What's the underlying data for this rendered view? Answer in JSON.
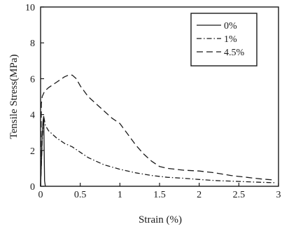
{
  "chart_data": {
    "type": "line",
    "title": "",
    "xlabel": "Strain (%)",
    "ylabel": "Tensile Stress(MPa)",
    "xlim": [
      0,
      3
    ],
    "ylim": [
      0,
      10
    ],
    "x_ticks": [
      0,
      0.5,
      1,
      1.5,
      2,
      2.5,
      3
    ],
    "x_tick_labels": [
      "0",
      "0.5",
      "1",
      "1.5",
      "2",
      "2.5",
      "3"
    ],
    "y_ticks": [
      0,
      2,
      4,
      6,
      8,
      10
    ],
    "y_tick_labels": [
      "0",
      "2",
      "4",
      "6",
      "8",
      "10"
    ],
    "grid": false,
    "legend": "top-right",
    "series": [
      {
        "name": "0%",
        "style": "solid",
        "color": "#1a1a1a",
        "points": [
          [
            0,
            0
          ],
          [
            0.01,
            1.2
          ],
          [
            0.02,
            2.8
          ],
          [
            0.03,
            3.6
          ],
          [
            0.04,
            3.9
          ],
          [
            0.05,
            0.3
          ],
          [
            0.06,
            0
          ]
        ]
      },
      {
        "name": "1%",
        "style": "dashdot",
        "color": "#1a1a1a",
        "points": [
          [
            0,
            0
          ],
          [
            0.02,
            2.5
          ],
          [
            0.04,
            3.9
          ],
          [
            0.06,
            3.4
          ],
          [
            0.1,
            3.1
          ],
          [
            0.2,
            2.7
          ],
          [
            0.3,
            2.4
          ],
          [
            0.4,
            2.2
          ],
          [
            0.5,
            1.9
          ],
          [
            0.6,
            1.6
          ],
          [
            0.7,
            1.4
          ],
          [
            0.8,
            1.2
          ],
          [
            1.0,
            0.95
          ],
          [
            1.2,
            0.75
          ],
          [
            1.4,
            0.6
          ],
          [
            1.6,
            0.5
          ],
          [
            1.8,
            0.45
          ],
          [
            2.0,
            0.38
          ],
          [
            2.2,
            0.32
          ],
          [
            2.5,
            0.27
          ],
          [
            2.8,
            0.22
          ],
          [
            2.97,
            0.2
          ]
        ]
      },
      {
        "name": "4.5%",
        "style": "dashed",
        "color": "#1a1a1a",
        "points": [
          [
            0,
            0
          ],
          [
            0.01,
            4.6
          ],
          [
            0.02,
            5.0
          ],
          [
            0.05,
            5.3
          ],
          [
            0.1,
            5.5
          ],
          [
            0.2,
            5.8
          ],
          [
            0.3,
            6.1
          ],
          [
            0.35,
            6.2
          ],
          [
            0.4,
            6.2
          ],
          [
            0.45,
            6.0
          ],
          [
            0.5,
            5.6
          ],
          [
            0.6,
            5.0
          ],
          [
            0.7,
            4.6
          ],
          [
            0.8,
            4.2
          ],
          [
            0.9,
            3.8
          ],
          [
            1.0,
            3.5
          ],
          [
            1.1,
            2.9
          ],
          [
            1.2,
            2.3
          ],
          [
            1.3,
            1.8
          ],
          [
            1.4,
            1.4
          ],
          [
            1.5,
            1.1
          ],
          [
            1.6,
            1.0
          ],
          [
            1.8,
            0.9
          ],
          [
            2.0,
            0.85
          ],
          [
            2.2,
            0.75
          ],
          [
            2.4,
            0.6
          ],
          [
            2.6,
            0.5
          ],
          [
            2.8,
            0.4
          ],
          [
            2.95,
            0.35
          ]
        ]
      }
    ]
  }
}
